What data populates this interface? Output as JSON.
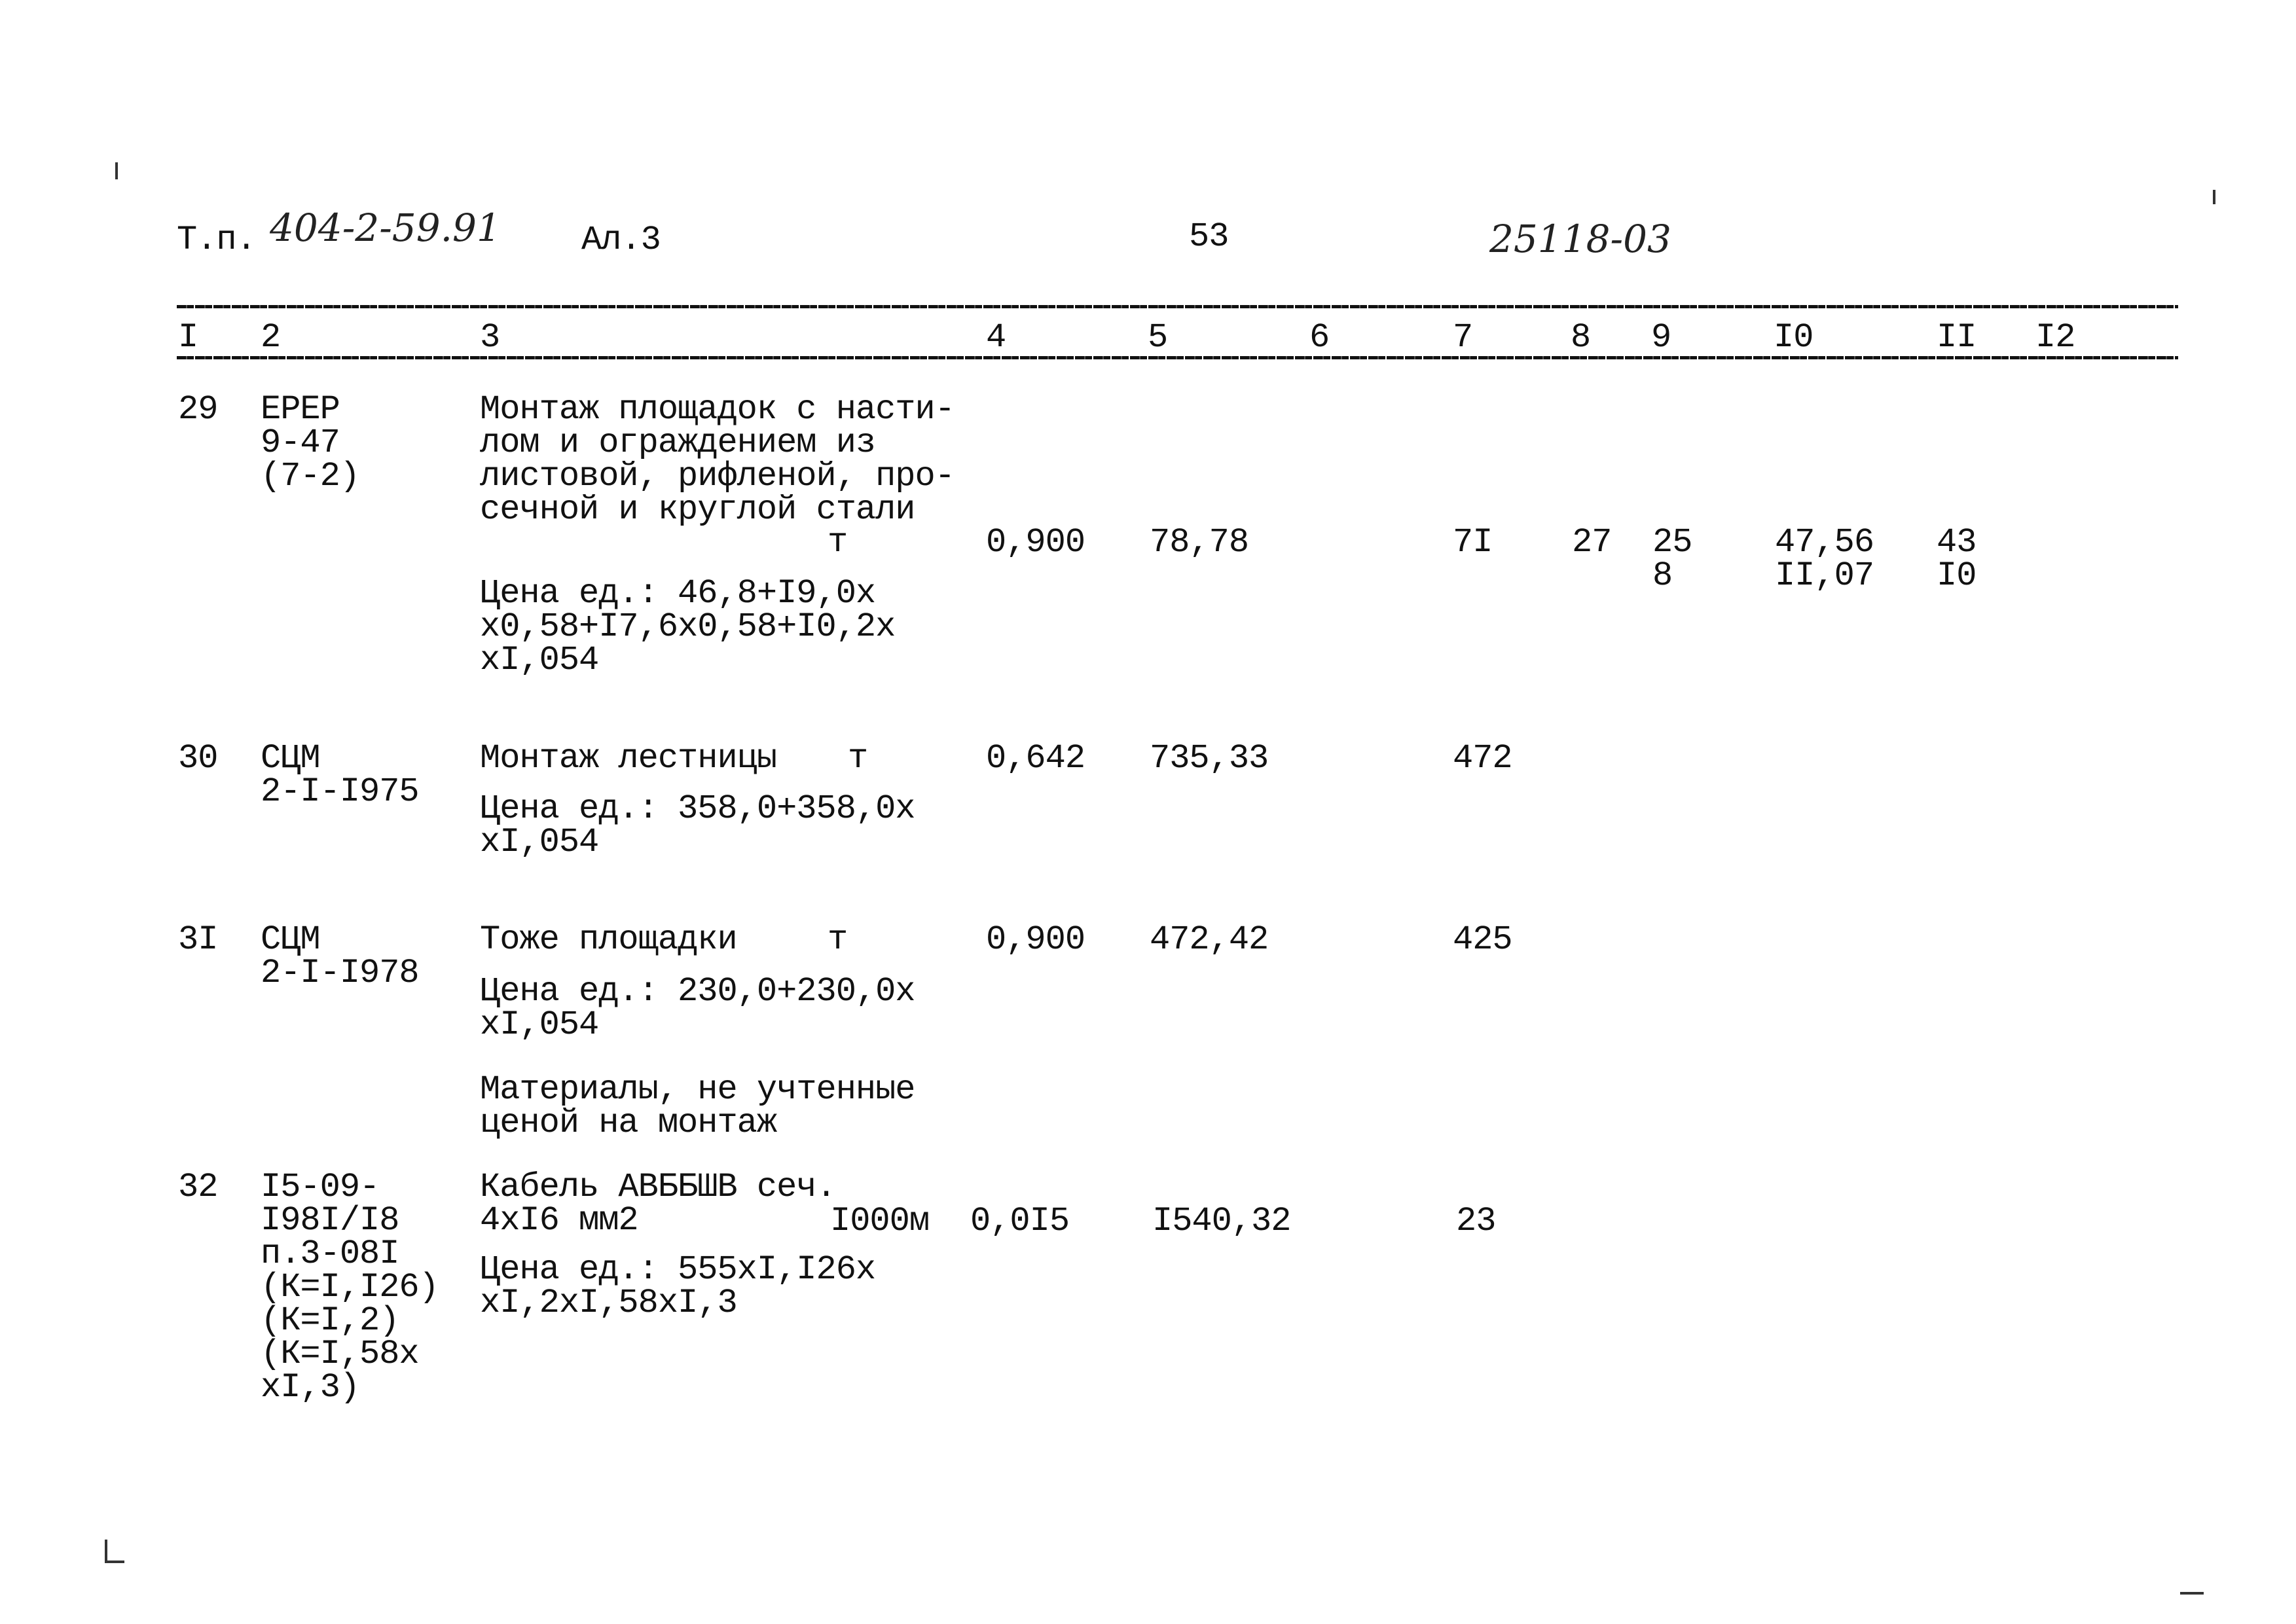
{
  "header": {
    "prefix": "Т.п.",
    "project_number": "404-2-59.91",
    "album": "Ал.3",
    "page_number": "53",
    "doc_code": "25118-03"
  },
  "columns": [
    "I",
    "2",
    "3",
    "4",
    "5",
    "6",
    "7",
    "8",
    "9",
    "I0",
    "II",
    "I2"
  ],
  "rows": [
    {
      "num": "29",
      "code": "ЕРЕР\n9-47\n(7-2)",
      "description": "Монтаж площадок с насти-\nлом и ограждением из\nлистовой, рифленой, про-\nсечной и круглой стали",
      "unit": "т",
      "quantity": "0,900",
      "unit_cost": "78,78",
      "col6": "",
      "col7": "7I",
      "col8": "27",
      "col9": "25\n8",
      "col10": "47,56\nII,07",
      "col11": "43\nI0",
      "price_formula": "Цена ед.: 46,8+I9,0х\nх0,58+I7,6х0,58+I0,2х\nхI,054"
    },
    {
      "num": "30",
      "code": "СЦМ\n2-I-I975",
      "description": "Монтаж лестницы",
      "unit": "т",
      "quantity": "0,642",
      "unit_cost": "735,33",
      "col7": "472",
      "price_formula": "Цена ед.: 358,0+358,0х\nхI,054"
    },
    {
      "num": "3I",
      "code": "СЦМ\n2-I-I978",
      "description": "Тоже площадки",
      "unit": "т",
      "quantity": "0,900",
      "unit_cost": "472,42",
      "col7": "425",
      "price_formula": "Цена ед.: 230,0+230,0х\nхI,054",
      "note": "Материалы, не учтенные\nценой на монтаж"
    },
    {
      "num": "32",
      "code": "I5-09-\nI98I/I8\nп.3-08I\n(К=I,I26)\n(К=I,2)\n(К=I,58х\nхI,3)",
      "description": "Кабель АВББШВ сеч.\n4хI6 мм2",
      "unit": "I000м",
      "quantity": "0,0I5",
      "unit_cost": "I540,32",
      "col7": "23",
      "price_formula": "Цена ед.: 555хI,I26х\nхI,2хI,58хI,3"
    }
  ]
}
